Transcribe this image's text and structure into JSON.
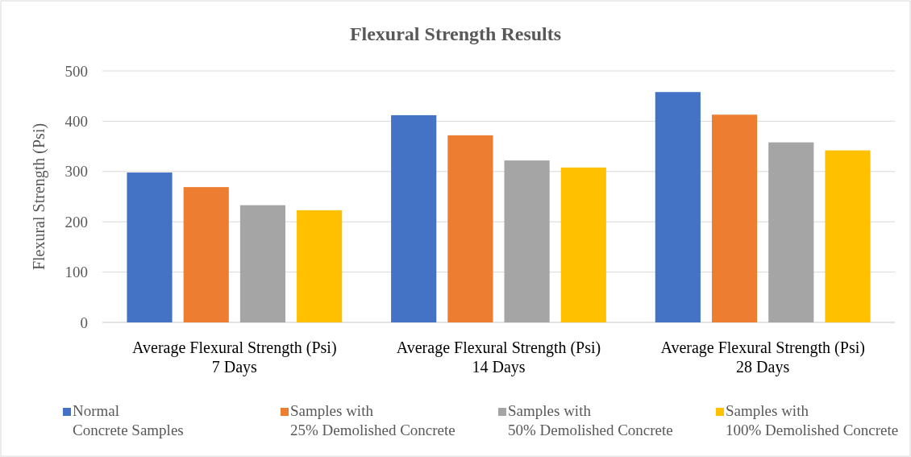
{
  "chart_data": {
    "type": "bar",
    "title": "Flexural Strength Results",
    "ylabel": "Flexural Strength (Psi)",
    "categories": [
      "Average Flexural Strength (Psi)\n7 Days",
      "Average Flexural Strength (Psi)\n14 Days",
      "Average Flexural Strength (Psi)\n28 Days"
    ],
    "series": [
      {
        "name": "Normal\nConcrete Samples",
        "color": "#4472c4",
        "values": [
          298,
          412,
          458
        ]
      },
      {
        "name": "Samples with\n25% Demolished Concrete",
        "color": "#ed7d31",
        "values": [
          269,
          372,
          413
        ]
      },
      {
        "name": "Samples with\n50% Demolished Concrete",
        "color": "#a5a5a5",
        "values": [
          233,
          322,
          358
        ]
      },
      {
        "name": "Samples with\n100% Demolished Concrete",
        "color": "#ffc000",
        "values": [
          223,
          308,
          342
        ]
      }
    ],
    "ylim": [
      0,
      500
    ],
    "yticks": [
      0,
      100,
      200,
      300,
      400,
      500
    ],
    "grid": "y",
    "legend": "bottom"
  }
}
